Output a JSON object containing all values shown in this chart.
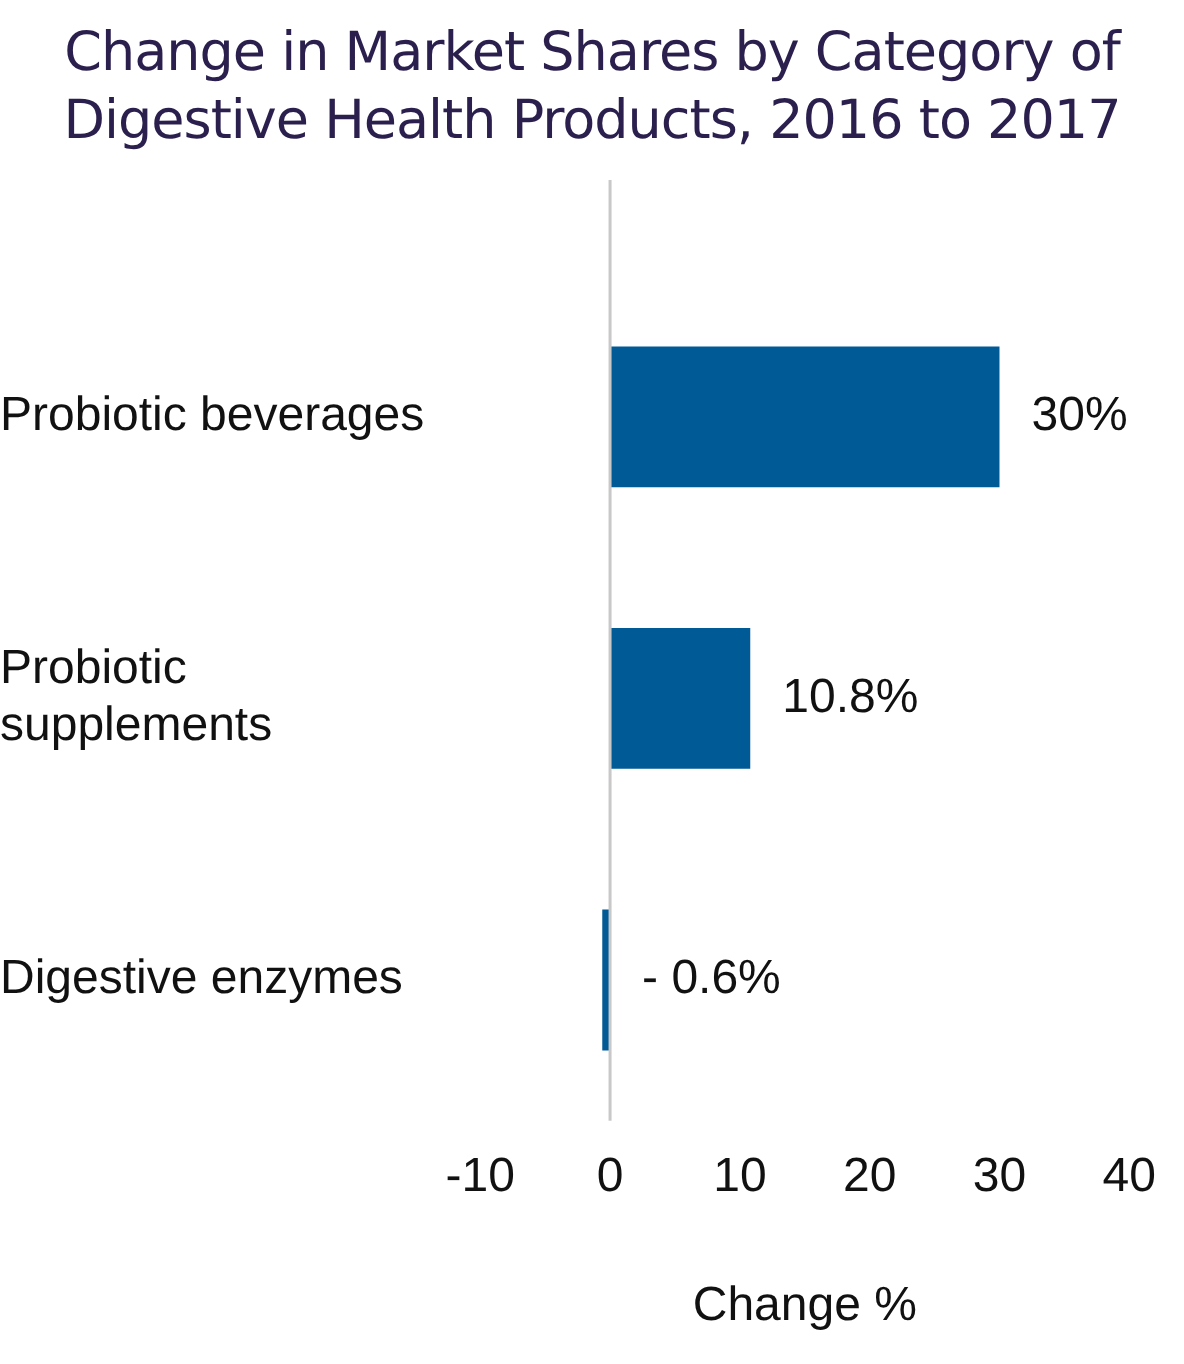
{
  "chart_data": {
    "type": "bar",
    "orientation": "horizontal",
    "title": "Change in Market Shares by Category of Digestive Health Products, 2016 to 2017",
    "xlabel": "Change %",
    "categories": [
      "Probiotic beverages",
      "Probiotic supplements",
      "Digestive enzymes"
    ],
    "values": [
      30,
      10.8,
      -0.6
    ],
    "color": "#005a96",
    "value_labels": [
      "30%",
      "10.8%",
      "- 0.6%"
    ],
    "xlim": [
      -10,
      40
    ],
    "xticks": [
      -10,
      0,
      10,
      20,
      30,
      40
    ],
    "grid": false,
    "legend": false,
    "ref_lines": [
      {
        "axis": "x",
        "value": 0,
        "color": "#c8c8c8"
      }
    ]
  }
}
